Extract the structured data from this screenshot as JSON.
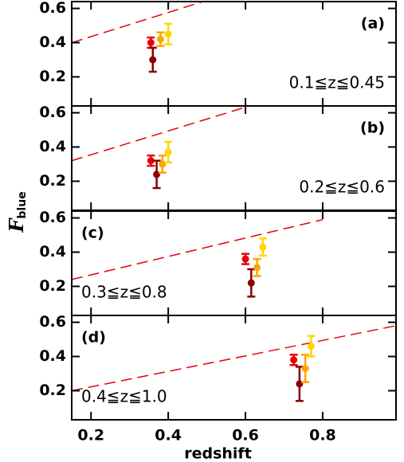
{
  "chart_data": [
    {
      "type": "scatter",
      "label": "(a)",
      "note": "0.1≦z≦0.45",
      "note_corner": "lower right",
      "x": [
        0.355,
        0.36,
        0.38,
        0.4
      ],
      "values": [
        0.4,
        0.3,
        0.42,
        0.45
      ],
      "errors": [
        0.03,
        0.07,
        0.04,
        0.06
      ],
      "colors": [
        "#e8000b",
        "#8b0000",
        "#ffa500",
        "#ffd700"
      ],
      "trend_x": [
        0.15,
        0.49
      ],
      "trend_y": [
        0.4,
        0.64
      ],
      "trend_color": "#e8000b",
      "xlim": [
        0.15,
        0.99
      ],
      "ylim": [
        0.03,
        0.64
      ],
      "xticks": [
        0.2,
        0.4,
        0.6,
        0.8
      ],
      "yticks": [
        0.2,
        0.4,
        0.6
      ]
    },
    {
      "type": "scatter",
      "label": "(b)",
      "note": "0.2≦z≦0.6",
      "note_corner": "lower right",
      "x": [
        0.355,
        0.37,
        0.385,
        0.4
      ],
      "values": [
        0.32,
        0.24,
        0.3,
        0.37
      ],
      "errors": [
        0.03,
        0.08,
        0.05,
        0.06
      ],
      "colors": [
        "#e8000b",
        "#8b0000",
        "#ffa500",
        "#ffd700"
      ],
      "trend_x": [
        0.15,
        0.61
      ],
      "trend_y": [
        0.32,
        0.64
      ],
      "trend_color": "#e8000b",
      "xlim": [
        0.15,
        0.99
      ],
      "ylim": [
        0.03,
        0.64
      ],
      "xticks": [
        0.2,
        0.4,
        0.6,
        0.8
      ],
      "yticks": [
        0.2,
        0.4,
        0.6
      ],
      "ylabel": "F",
      "ylabel_sub": "blue"
    },
    {
      "type": "scatter",
      "label": "(c)",
      "note": "0.3≦z≦0.8",
      "note_corner": "lower left",
      "x": [
        0.6,
        0.615,
        0.63,
        0.645
      ],
      "values": [
        0.36,
        0.22,
        0.31,
        0.43
      ],
      "errors": [
        0.03,
        0.08,
        0.05,
        0.05
      ],
      "colors": [
        "#e8000b",
        "#8b0000",
        "#ffa500",
        "#ffd700"
      ],
      "trend_x": [
        0.15,
        0.8
      ],
      "trend_y": [
        0.24,
        0.59
      ],
      "trend_color": "#e8000b",
      "xlim": [
        0.15,
        0.99
      ],
      "ylim": [
        0.03,
        0.64
      ],
      "xticks": [
        0.2,
        0.4,
        0.6,
        0.8
      ],
      "yticks": [
        0.2,
        0.4,
        0.6
      ]
    },
    {
      "type": "scatter",
      "label": "(d)",
      "note": "0.4≦z≦1.0",
      "note_corner": "lower left",
      "x": [
        0.725,
        0.74,
        0.755,
        0.77
      ],
      "values": [
        0.38,
        0.24,
        0.33,
        0.46
      ],
      "errors": [
        0.03,
        0.1,
        0.08,
        0.06
      ],
      "colors": [
        "#e8000b",
        "#8b0000",
        "#ffa500",
        "#ffd700"
      ],
      "trend_x": [
        0.15,
        0.99
      ],
      "trend_y": [
        0.2,
        0.58
      ],
      "trend_color": "#e8000b",
      "xlim": [
        0.15,
        0.99
      ],
      "ylim": [
        0.03,
        0.64
      ],
      "xticks": [
        0.2,
        0.4,
        0.6,
        0.8
      ],
      "yticks": [
        0.2,
        0.4,
        0.6
      ],
      "xlabel": "redshift"
    }
  ]
}
